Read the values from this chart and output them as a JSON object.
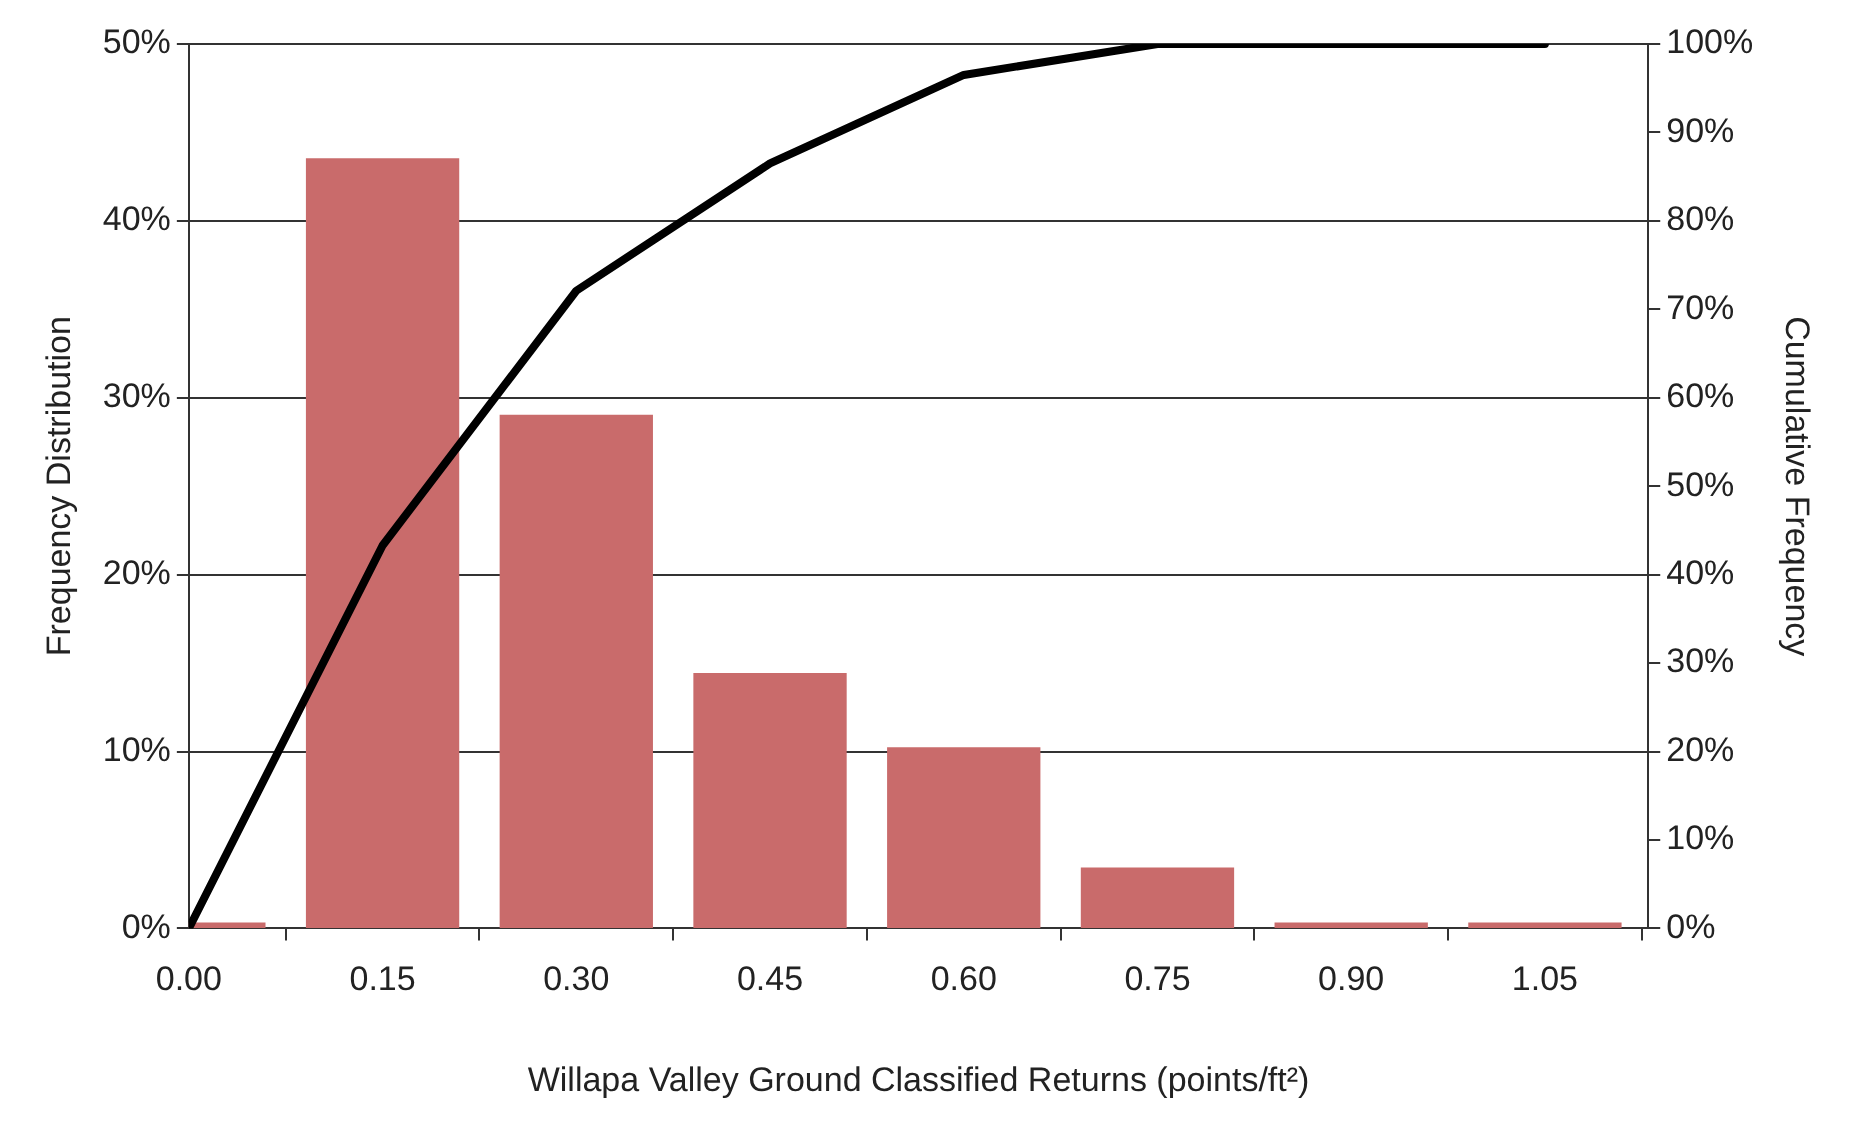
{
  "chart_data": {
    "type": "bar",
    "xlabel": "Willapa Valley Ground Classified Returns (points/ft²)",
    "ylabel": "Frequency Distribution",
    "y2label": "Cumulative Frequency",
    "x": [
      0,
      0.15,
      0.3,
      0.45,
      0.6,
      0.75,
      0.9,
      1.05
    ],
    "series": [
      {
        "color": "#c96b6b",
        "values": [
          0.3,
          43.5,
          29.0,
          14.4,
          10.2,
          3.4,
          0.3,
          0.3
        ]
      },
      {
        "type": "line",
        "axis": "y2",
        "color": "#000000",
        "values": [
          0,
          43.3,
          72.1,
          86.5,
          96.5,
          100,
          100,
          100
        ]
      }
    ],
    "xlim": [
      0,
      1.13
    ],
    "xticks": [
      {
        "value": 0,
        "label": "0.00"
      },
      {
        "value": 0.15,
        "label": "0.15"
      },
      {
        "value": 0.3,
        "label": "0.30"
      },
      {
        "value": 0.45,
        "label": "0.45"
      },
      {
        "value": 0.6,
        "label": "0.60"
      },
      {
        "value": 0.75,
        "label": "0.75"
      },
      {
        "value": 0.9,
        "label": "0.90"
      },
      {
        "value": 1.05,
        "label": "1.05"
      }
    ],
    "ylim": [
      0,
      50
    ],
    "yticks": [
      {
        "value": 0,
        "label": "0%"
      },
      {
        "value": 10,
        "label": "10%"
      },
      {
        "value": 20,
        "label": "20%"
      },
      {
        "value": 30,
        "label": "30%"
      },
      {
        "value": 40,
        "label": "40%"
      },
      {
        "value": 50,
        "label": "50%"
      }
    ],
    "y2lim": [
      0,
      100
    ],
    "y2ticks": [
      {
        "value": 0,
        "label": "0%"
      },
      {
        "value": 10,
        "label": "10%"
      },
      {
        "value": 20,
        "label": "20%"
      },
      {
        "value": 30,
        "label": "30%"
      },
      {
        "value": 40,
        "label": "40%"
      },
      {
        "value": 50,
        "label": "50%"
      },
      {
        "value": 60,
        "label": "60%"
      },
      {
        "value": 70,
        "label": "70%"
      },
      {
        "value": 80,
        "label": "80%"
      },
      {
        "value": 90,
        "label": "90%"
      },
      {
        "value": 100,
        "label": "100%"
      }
    ],
    "grid": "y",
    "legend": false,
    "marker": "none"
  }
}
